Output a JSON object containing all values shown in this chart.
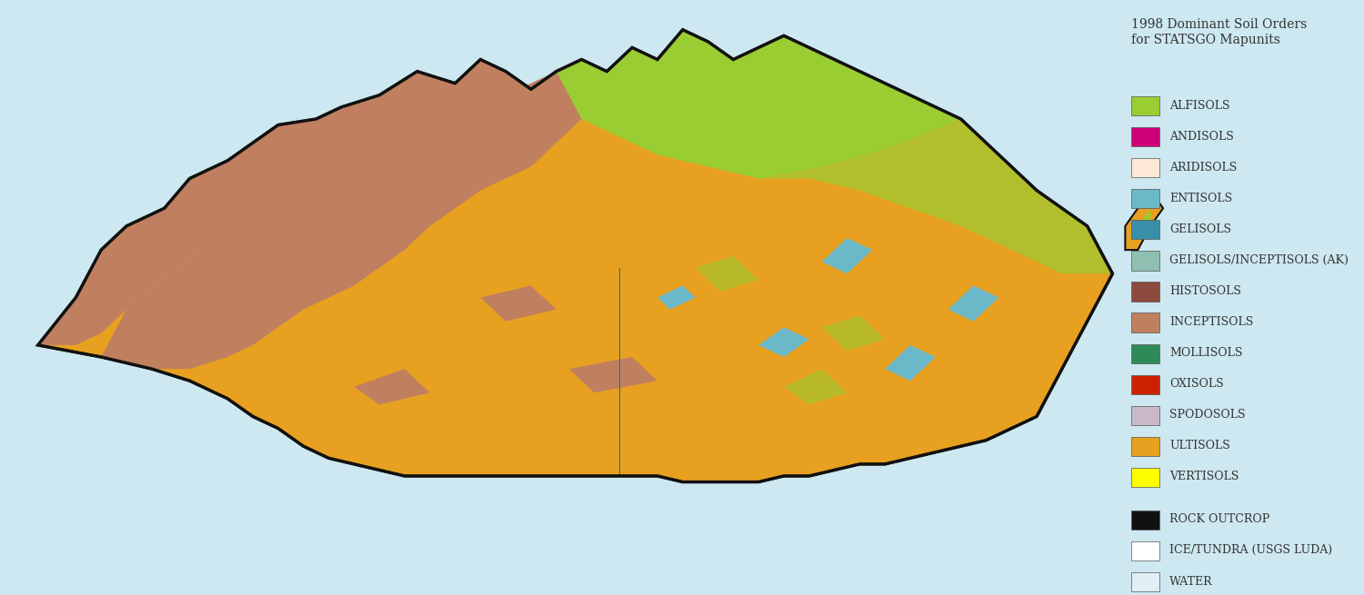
{
  "title": "1998 Dominant Soil Orders\nfor STATSGO Mapunits",
  "background_color": "#cde8f0",
  "legend_entries": [
    {
      "label": "ALFISOLS",
      "color": "#9acd32"
    },
    {
      "label": "ANDISOLS",
      "color": "#cc0077"
    },
    {
      "label": "ARIDISOLS",
      "color": "#fde8d8"
    },
    {
      "label": "ENTISOLS",
      "color": "#6bb8c8"
    },
    {
      "label": "GELISOLS",
      "color": "#3a8fa8"
    },
    {
      "label": "GELISOLS/INCEPTISOLS (AK)",
      "color": "#8fbfb0"
    },
    {
      "label": "HISTOSOLS",
      "color": "#8b4a3c"
    },
    {
      "label": "INCEPTISOLS",
      "color": "#c08060"
    },
    {
      "label": "MOLLISOLS",
      "color": "#2e8b57"
    },
    {
      "label": "OXISOLS",
      "color": "#cc2200"
    },
    {
      "label": "SPODOSOLS",
      "color": "#c8b8c8"
    },
    {
      "label": "ULTISOLS",
      "color": "#e8a020"
    },
    {
      "label": "VERTISOLS",
      "color": "#ffff00"
    }
  ],
  "special_entries": [
    {
      "label": "ROCK OUTCROP",
      "color": "#111111"
    },
    {
      "label": "ICE/TUNDRA (USGS LUDA)",
      "color": "#ffffff"
    },
    {
      "label": "WATER",
      "color": "#e0eef5"
    }
  ],
  "title_fontsize": 10,
  "legend_fontsize": 9
}
